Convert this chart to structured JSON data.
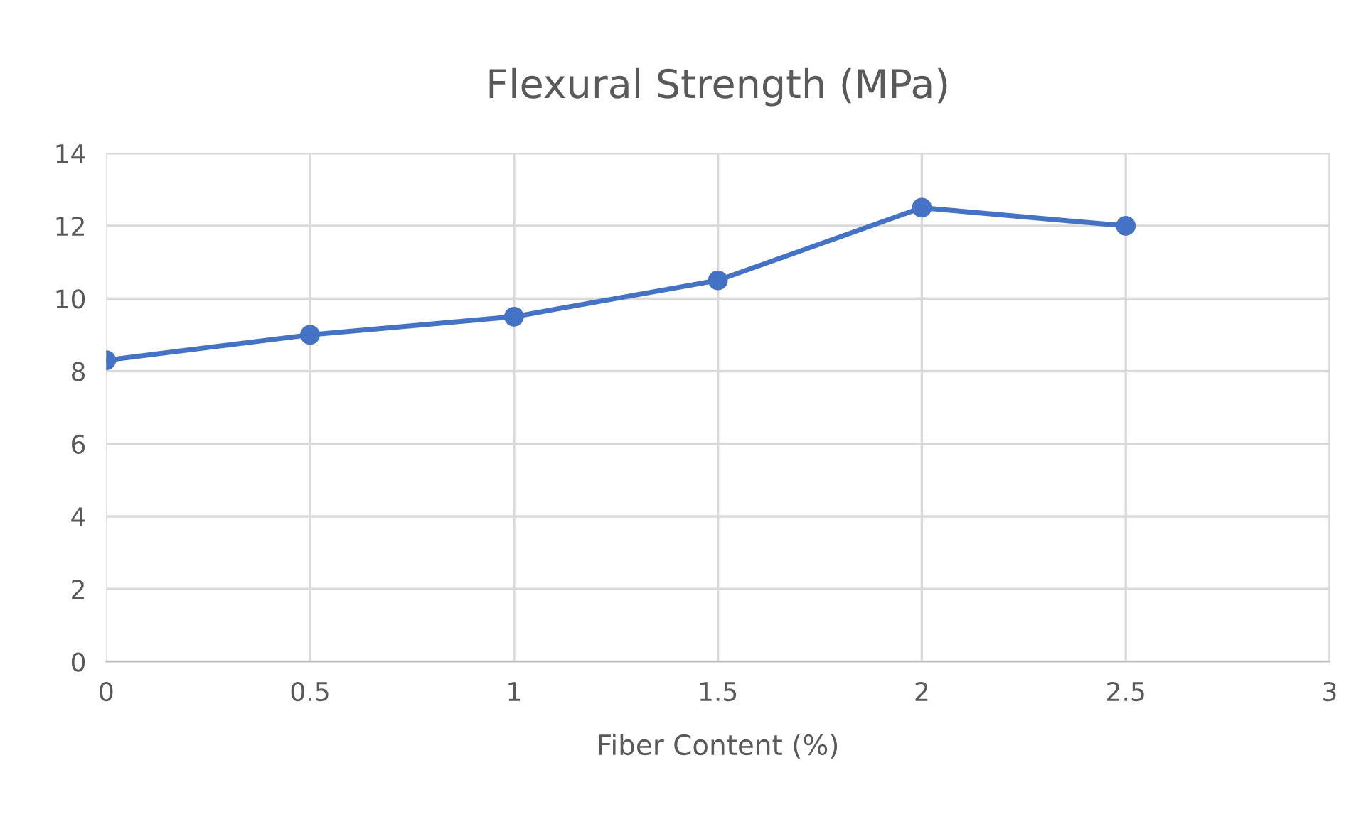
{
  "chart_data": {
    "type": "line",
    "title": "Flexural Strength (MPa)",
    "xlabel": "Fiber Content (%)",
    "x": [
      0,
      0.5,
      1,
      1.5,
      2,
      2.5
    ],
    "series": [
      {
        "color": "#4472c4",
        "values": [
          8.3,
          9.0,
          9.5,
          10.5,
          12.5,
          12.0
        ]
      }
    ],
    "xlim": [
      0,
      3
    ],
    "xticks": [
      0,
      0.5,
      1,
      1.5,
      2,
      2.5,
      3
    ],
    "ylim": [
      0,
      14
    ],
    "yticks": [
      0,
      2,
      4,
      6,
      8,
      10,
      12,
      14
    ],
    "grid": true,
    "marker": "circle",
    "line_style": "solid",
    "legend": false
  }
}
